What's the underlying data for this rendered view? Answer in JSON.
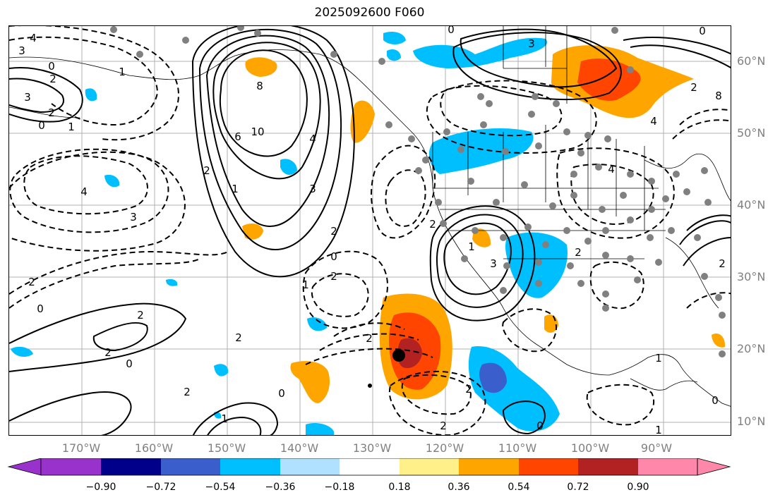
{
  "title": "2025092600 F060",
  "lat_labels": [
    "60°N",
    "50°N",
    "40°N",
    "30°N",
    "20°N",
    "10°N"
  ],
  "lon_labels": [
    "170°W",
    "160°W",
    "150°W",
    "140°W",
    "130°W",
    "120°W",
    "110°W",
    "100°W",
    "90°W"
  ],
  "colorbar": {
    "ticks": [
      "−0.90",
      "−0.72",
      "−0.54",
      "−0.36",
      "−0.18",
      "0.18",
      "0.36",
      "0.54",
      "0.72",
      "0.90"
    ],
    "colors": [
      "#9932cc",
      "#00008b",
      "#3a5fcd",
      "#00bfff",
      "#b0e2ff",
      "#ffffff",
      "#fff08a",
      "#ffa500",
      "#ff4500",
      "#b22222",
      "#ff88aa"
    ]
  },
  "contour_labels": [
    "4",
    "3",
    "2",
    "0",
    "1",
    "2",
    "3",
    "0",
    "1",
    "8",
    "10",
    "6",
    "4",
    "3",
    "2",
    "2",
    "1",
    "4",
    "3",
    "2",
    "0",
    "2",
    "0",
    "2",
    "2",
    "2",
    "1",
    "0",
    "0",
    "2",
    "1",
    "2",
    "3",
    "1",
    "2",
    "2",
    "0",
    "4",
    "4",
    "2",
    "3",
    "2",
    "8",
    "2",
    "1",
    "1",
    "0",
    "0",
    "0",
    "2"
  ],
  "colors": {
    "positive_fill": "#ffa500",
    "strong_positive_fill": "#ff4500",
    "negative_fill": "#00bfff",
    "strong_negative_fill": "#3a5fcd",
    "station_dot": "#808080",
    "contour": "#000000"
  }
}
